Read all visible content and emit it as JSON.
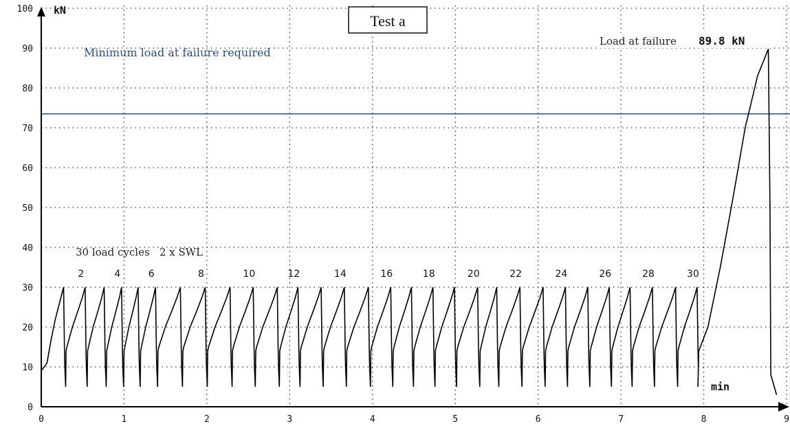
{
  "chart_data": {
    "type": "line",
    "title": "Test a",
    "ylabel": "kN",
    "xlabel": "min",
    "xlim": [
      0,
      9
    ],
    "ylim": [
      0,
      100
    ],
    "x_ticks": [
      "0",
      "1",
      "2",
      "3",
      "4",
      "5",
      "6",
      "7",
      "8",
      "9"
    ],
    "y_ticks": [
      "0",
      "10",
      "20",
      "30",
      "40",
      "50",
      "60",
      "70",
      "80",
      "90",
      "100"
    ],
    "grid": true,
    "reference_line": {
      "label": "Minimum load at failure required",
      "value": 73.5,
      "color": "#2b4f87"
    },
    "cycles_annotation": "30 load cycles   2 x SWL",
    "cycle_labels": [
      "2",
      "4",
      "6",
      "8",
      "10",
      "12",
      "14",
      "16",
      "18",
      "20",
      "22",
      "24",
      "26",
      "28",
      "30"
    ],
    "failure_annotation": {
      "label": "Load at failure",
      "value_text": "89.8 kN",
      "x": 8.78,
      "y": 89.8
    },
    "series": [
      {
        "color": "#000000",
        "cycle_peaks_x": [
          0.27,
          0.53,
          0.76,
          0.97,
          1.17,
          1.38,
          1.68,
          1.98,
          2.28,
          2.56,
          2.85,
          3.1,
          3.38,
          3.66,
          3.95,
          4.22,
          4.47,
          4.73,
          4.99,
          5.27,
          5.5,
          5.78,
          6.06,
          6.33,
          6.6,
          6.86,
          7.11,
          7.38,
          7.66,
          7.92
        ],
        "cycle_peak_y": 30,
        "cycle_trough_y": 5,
        "cycle_reset_y": 14,
        "start_y": 9,
        "final_ramp": {
          "start_x": 7.94,
          "start_y": 14,
          "peak_x": 8.78,
          "peak_y": 89.8,
          "end_x": 8.88,
          "end_y": 3
        }
      }
    ]
  }
}
